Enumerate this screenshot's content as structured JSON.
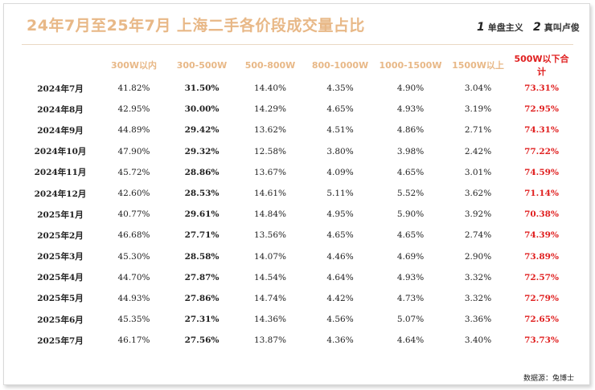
{
  "header": {
    "title": "24年7月至25年7月 上海二手各价段成交量占比",
    "brand1": "单盘主义",
    "brand1_mark": "1",
    "brand2": "真叫卢俊",
    "brand2_mark": "2"
  },
  "footer": {
    "source": "数据源：兔博士"
  },
  "colors": {
    "header_text": "#e8b887",
    "highlight_red": "#e02020",
    "body_text": "#222222"
  },
  "chart_data": {
    "type": "table",
    "title": "24年7月至25年7月 上海二手各价段成交量占比",
    "columns": [
      "",
      "300W以内",
      "300-500W",
      "500-800W",
      "800-1000W",
      "1000-1500W",
      "1500W以上",
      "500W以下合计"
    ],
    "rows": [
      [
        "2024年7月",
        "41.82%",
        "31.50%",
        "14.40%",
        "4.35%",
        "4.90%",
        "3.04%",
        "73.31%"
      ],
      [
        "2024年8月",
        "42.95%",
        "30.00%",
        "14.29%",
        "4.65%",
        "4.93%",
        "3.19%",
        "72.95%"
      ],
      [
        "2024年9月",
        "44.89%",
        "29.42%",
        "13.62%",
        "4.51%",
        "4.86%",
        "2.71%",
        "74.31%"
      ],
      [
        "2024年10月",
        "47.90%",
        "29.32%",
        "12.58%",
        "3.80%",
        "3.98%",
        "2.42%",
        "77.22%"
      ],
      [
        "2024年11月",
        "45.72%",
        "28.86%",
        "13.67%",
        "4.09%",
        "4.65%",
        "3.01%",
        "74.59%"
      ],
      [
        "2024年12月",
        "42.60%",
        "28.53%",
        "14.61%",
        "5.11%",
        "5.52%",
        "3.62%",
        "71.14%"
      ],
      [
        "2025年1月",
        "40.77%",
        "29.61%",
        "14.84%",
        "4.95%",
        "5.90%",
        "3.92%",
        "70.38%"
      ],
      [
        "2025年2月",
        "46.68%",
        "27.71%",
        "13.56%",
        "4.65%",
        "4.65%",
        "2.74%",
        "74.39%"
      ],
      [
        "2025年3月",
        "45.30%",
        "28.58%",
        "14.07%",
        "4.46%",
        "4.69%",
        "2.90%",
        "73.89%"
      ],
      [
        "2025年4月",
        "44.70%",
        "27.87%",
        "14.54%",
        "4.64%",
        "4.93%",
        "3.32%",
        "72.57%"
      ],
      [
        "2025年5月",
        "44.93%",
        "27.86%",
        "14.74%",
        "4.42%",
        "4.73%",
        "3.32%",
        "72.79%"
      ],
      [
        "2025年6月",
        "45.35%",
        "27.31%",
        "14.36%",
        "4.56%",
        "5.07%",
        "3.36%",
        "72.65%"
      ],
      [
        "2025年7月",
        "46.17%",
        "27.56%",
        "13.87%",
        "4.36%",
        "4.64%",
        "3.40%",
        "73.73%"
      ]
    ]
  }
}
